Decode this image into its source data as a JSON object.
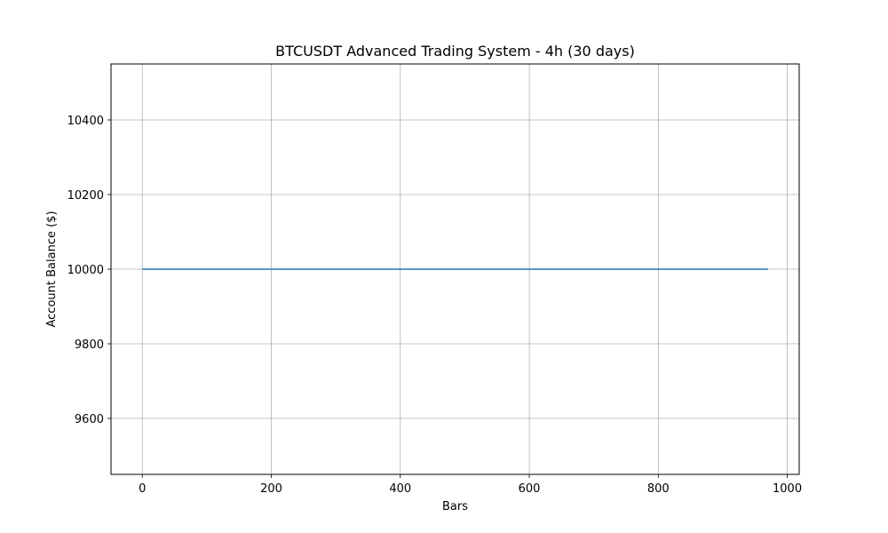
{
  "chart_data": {
    "type": "line",
    "title": "BTCUSDT Advanced Trading System - 4h (30 days)",
    "xlabel": "Bars",
    "ylabel": "Account Balance ($)",
    "xlim": [
      -48.5,
      1018.5
    ],
    "ylim": [
      9450,
      10550
    ],
    "x_ticks": [
      0,
      200,
      400,
      600,
      800,
      1000
    ],
    "y_ticks": [
      9600,
      9800,
      10000,
      10200,
      10400
    ],
    "grid": true,
    "series": [
      {
        "color": "#1f77b4",
        "points": [
          [
            0,
            10000
          ],
          [
            970,
            10000
          ]
        ]
      }
    ]
  }
}
